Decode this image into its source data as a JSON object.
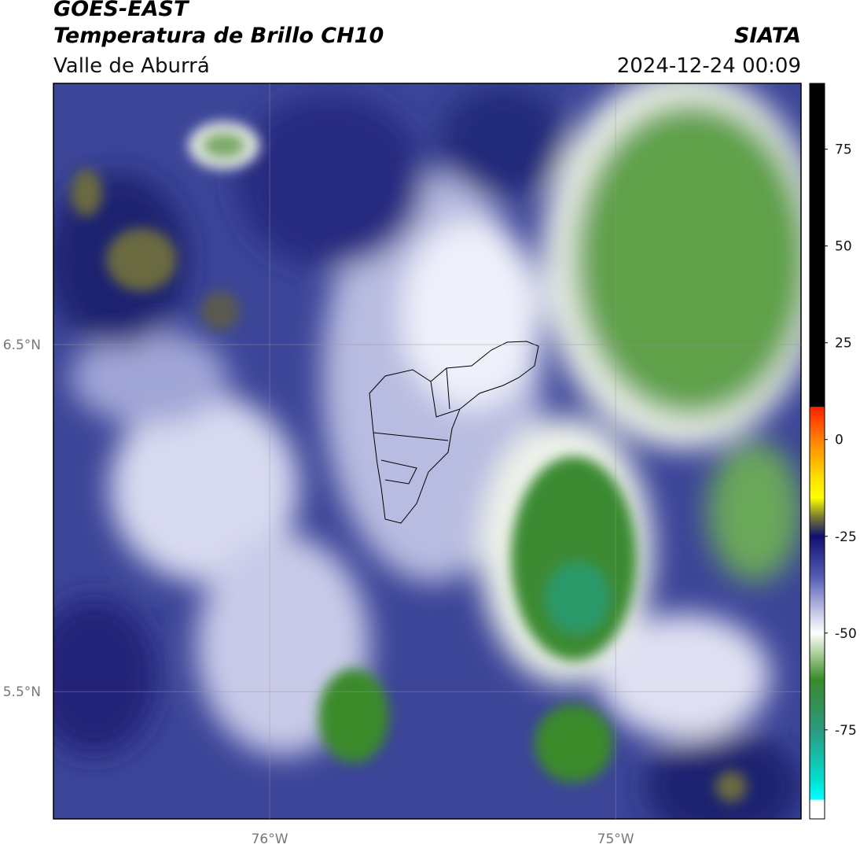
{
  "header": {
    "title": "GOES-EAST",
    "subtitle": "Temperatura de Brillo CH10",
    "region": "Valle de Aburrá",
    "source": "SIATA",
    "datetime": "2024-12-24 00:09"
  },
  "map": {
    "xlim": [
      -76.625,
      -74.464
    ],
    "ylim": [
      5.133,
      7.253
    ],
    "xticks": [
      {
        "value": -76,
        "label": "76°W"
      },
      {
        "value": -75,
        "label": "75°W"
      }
    ],
    "yticks": [
      {
        "value": 6.5,
        "label": "6.5°N"
      },
      {
        "value": 5.5,
        "label": "5.5°N"
      }
    ],
    "grid": true
  },
  "colorbar": {
    "lim": [
      -98,
      92
    ],
    "ticks": [
      75,
      50,
      25,
      0,
      -25,
      -50,
      -75
    ],
    "stops": [
      {
        "value": 92,
        "color": "#000000"
      },
      {
        "value": 8.5,
        "color": "#000000"
      },
      {
        "value": 8.4,
        "color": "#ff2000"
      },
      {
        "value": 0,
        "color": "#ff8000"
      },
      {
        "value": -10,
        "color": "#ffe000"
      },
      {
        "value": -15,
        "color": "#ffff00"
      },
      {
        "value": -20,
        "color": "#7a7a30"
      },
      {
        "value": -25,
        "color": "#101070"
      },
      {
        "value": -35,
        "color": "#5058b0"
      },
      {
        "value": -45,
        "color": "#c8cae8"
      },
      {
        "value": -50,
        "color": "#ffffff"
      },
      {
        "value": -55,
        "color": "#b0d0a0"
      },
      {
        "value": -62,
        "color": "#3a8a2a"
      },
      {
        "value": -75,
        "color": "#2a9a80"
      },
      {
        "value": -88,
        "color": "#00e0d0"
      },
      {
        "value": -93,
        "color": "#00ffff"
      },
      {
        "value": -93.1,
        "color": "#ffffff"
      },
      {
        "value": -98,
        "color": "#ffffff"
      }
    ]
  }
}
